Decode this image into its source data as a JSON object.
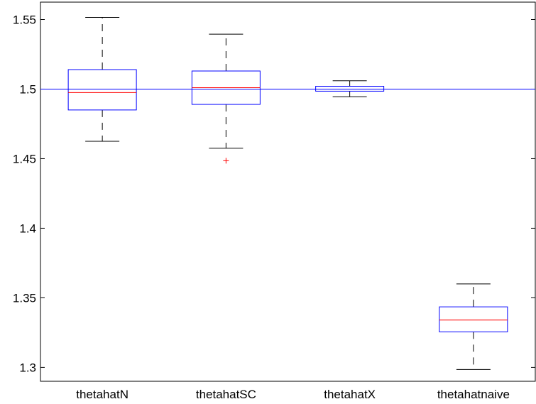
{
  "chart_data": {
    "type": "box",
    "title": "",
    "xlabel": "",
    "ylabel": "",
    "ylim": [
      1.29,
      1.5625
    ],
    "yticks": [
      1.3,
      1.35,
      1.4,
      1.45,
      1.5,
      1.55
    ],
    "ytick_labels": [
      "1.3",
      "1.35",
      "1.4",
      "1.45",
      "1.5",
      "1.55"
    ],
    "categories": [
      "thetahatN",
      "thetahatSC",
      "thetahatX",
      "thetahatnaive"
    ],
    "boxes": [
      {
        "label": "thetahatN",
        "whisker_low": 1.4625,
        "q1": 1.485,
        "median": 1.4975,
        "q3": 1.514,
        "whisker_high": 1.5515,
        "outliers": []
      },
      {
        "label": "thetahatSC",
        "whisker_low": 1.4575,
        "q1": 1.489,
        "median": 1.501,
        "q3": 1.513,
        "whisker_high": 1.5395,
        "outliers": [
          1.4485
        ]
      },
      {
        "label": "thetahatX",
        "whisker_low": 1.4945,
        "q1": 1.4985,
        "median": 1.5,
        "q3": 1.502,
        "whisker_high": 1.506,
        "outliers": []
      },
      {
        "label": "thetahatnaive",
        "whisker_low": 1.2985,
        "q1": 1.3255,
        "median": 1.334,
        "q3": 1.3435,
        "whisker_high": 1.36,
        "outliers": []
      }
    ],
    "reference_line": {
      "y": 1.5,
      "color": "#0000ff"
    },
    "colors": {
      "box": "#0000ff",
      "median": "#ff0000",
      "whisker": "#000000",
      "outlier": "#ff0000",
      "axes": "#000000"
    },
    "grid": false,
    "legend": "none"
  }
}
